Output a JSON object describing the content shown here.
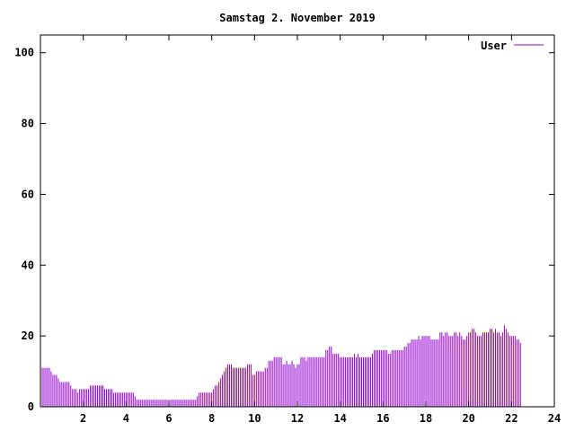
{
  "colors": {
    "series": "#9400d3",
    "axis": "#000000",
    "background": "#ffffff"
  },
  "chart_data": {
    "type": "bar",
    "title": "Samstag 2. November 2019",
    "xlabel": "",
    "ylabel": "",
    "xlim": [
      0,
      24
    ],
    "ylim": [
      0,
      105
    ],
    "x_ticks": [
      2,
      4,
      6,
      8,
      10,
      12,
      14,
      16,
      18,
      20,
      22,
      24
    ],
    "y_ticks": [
      0,
      20,
      40,
      60,
      80,
      100
    ],
    "grid": false,
    "legend_position": "top-right",
    "bin_hours": 0.0833333,
    "series": [
      {
        "name": "User",
        "color": "#9400d3",
        "values": [
          11,
          11,
          11,
          11,
          11,
          11,
          10,
          9,
          9,
          9,
          8,
          7,
          7,
          7,
          7,
          7,
          7,
          6,
          5,
          5,
          5,
          4,
          5,
          5,
          5,
          5,
          5,
          5,
          6,
          6,
          6,
          6,
          6,
          6,
          6,
          6,
          5,
          5,
          5,
          5,
          5,
          4,
          4,
          4,
          4,
          4,
          4,
          4,
          4,
          4,
          4,
          4,
          4,
          3,
          2,
          2,
          2,
          2,
          2,
          2,
          2,
          2,
          2,
          2,
          2,
          2,
          2,
          2,
          2,
          2,
          2,
          2,
          2,
          2,
          2,
          2,
          2,
          2,
          2,
          2,
          2,
          2,
          2,
          2,
          2,
          2,
          2,
          2,
          3,
          4,
          4,
          4,
          4,
          4,
          4,
          4,
          4,
          5,
          6,
          6,
          7,
          8,
          9,
          10,
          11,
          12,
          12,
          12,
          11,
          11,
          11,
          11,
          11,
          11,
          11,
          11,
          12,
          12,
          12,
          9,
          9,
          10,
          10,
          10,
          10,
          10,
          11,
          11,
          13,
          13,
          13,
          14,
          14,
          14,
          14,
          14,
          12,
          12,
          13,
          12,
          12,
          13,
          12,
          11,
          12,
          12,
          14,
          14,
          14,
          13,
          14,
          14,
          14,
          14,
          14,
          14,
          14,
          14,
          14,
          14,
          16,
          16,
          17,
          17,
          15,
          15,
          15,
          15,
          14,
          14,
          14,
          14,
          14,
          14,
          14,
          14,
          15,
          14,
          15,
          14,
          14,
          14,
          14,
          14,
          14,
          14,
          15,
          16,
          16,
          16,
          16,
          16,
          16,
          16,
          16,
          15,
          15,
          16,
          16,
          16,
          16,
          16,
          16,
          16,
          17,
          17,
          18,
          18,
          19,
          19,
          19,
          19,
          20,
          19,
          20,
          20,
          20,
          20,
          20,
          19,
          19,
          19,
          19,
          19,
          21,
          21,
          20,
          21,
          21,
          20,
          20,
          20,
          21,
          21,
          20,
          21,
          20,
          19,
          19,
          20,
          21,
          21,
          22,
          22,
          21,
          20,
          20,
          20,
          21,
          21,
          21,
          21,
          22,
          22,
          21,
          22,
          21,
          21,
          20,
          21,
          23,
          22,
          21,
          20,
          20,
          20,
          20,
          19,
          19,
          18
        ]
      }
    ]
  }
}
